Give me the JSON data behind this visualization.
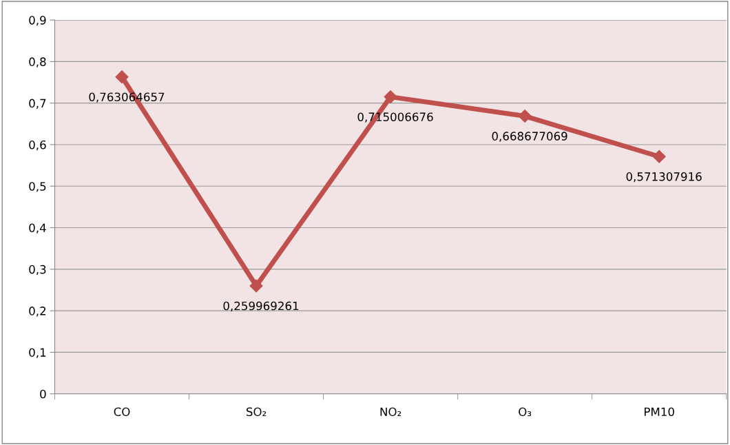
{
  "chart_data": {
    "type": "line",
    "categories": [
      "CO",
      "SO₂",
      "NO₂",
      "O₃",
      "PM10"
    ],
    "series": [
      {
        "color": "#c0504d",
        "values": [
          0.763064657,
          0.259969261,
          0.715006676,
          0.668677069,
          0.571307916
        ],
        "value_labels": [
          "0,763064657",
          "0,259969261",
          "0,715006676",
          "0,668677069",
          "0,571307916"
        ]
      }
    ],
    "ylim": [
      0,
      0.9
    ],
    "yticks": [
      0,
      {
        "value": 0.1,
        "label": "0,1"
      },
      {
        "value": 0.2,
        "label": "0,2"
      },
      {
        "value": 0.3,
        "label": "0,3"
      },
      {
        "value": 0.4,
        "label": "0,4"
      },
      {
        "value": 0.5,
        "label": "0,5"
      },
      {
        "value": 0.6,
        "label": "0,6"
      },
      {
        "value": 0.7,
        "label": "0,7"
      },
      {
        "value": 0.8,
        "label": "0,8"
      },
      {
        "value": 0.9,
        "label": "0,9"
      }
    ],
    "grid": "y",
    "marker": "diamond",
    "line_style": "solid",
    "legend": false
  }
}
